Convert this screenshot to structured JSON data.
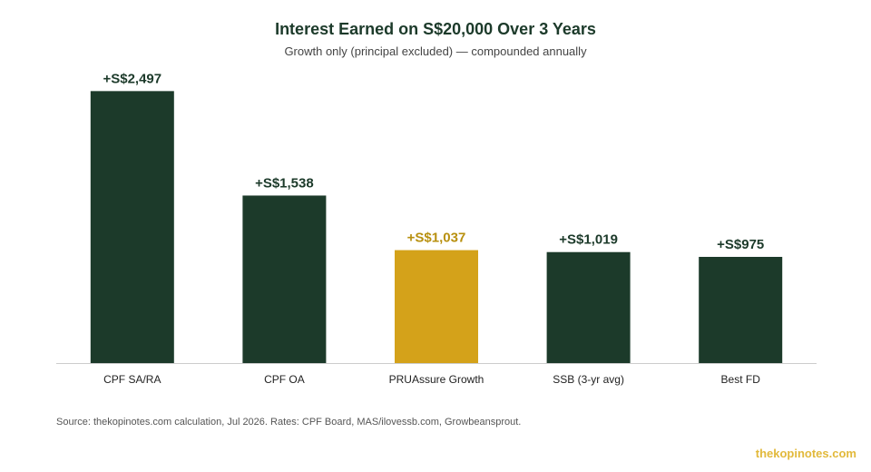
{
  "chart_data": {
    "type": "bar",
    "title": "Interest Earned on S$20,000 Over 3 Years",
    "subtitle": "Growth only (principal excluded) — compounded annually",
    "categories": [
      "CPF SA/RA",
      "CPF OA",
      "PRUAssure Growth",
      "SSB (3-yr avg)",
      "Best FD"
    ],
    "values": [
      2497,
      1538,
      1037,
      1019,
      975
    ],
    "value_labels": [
      "+S$2,497",
      "+S$1,538",
      "+S$1,037",
      "+S$1,019",
      "+S$975"
    ],
    "highlight_index": 2,
    "ylim": [
      0,
      2500
    ],
    "grid": false
  },
  "colors": {
    "bar": "#1c3a2a",
    "highlight": "#d4a21a",
    "label": "#1c3a2a",
    "highlight_label": "#b8900f",
    "axis": "#cccccc",
    "tick_label": "#222222"
  },
  "footer": {
    "source": "Source: thekopinotes.com calculation, Jul 2026. Rates: CPF Board, MAS/ilovessb.com, Growbeansprout.",
    "brand": "thekopinotes.com"
  }
}
